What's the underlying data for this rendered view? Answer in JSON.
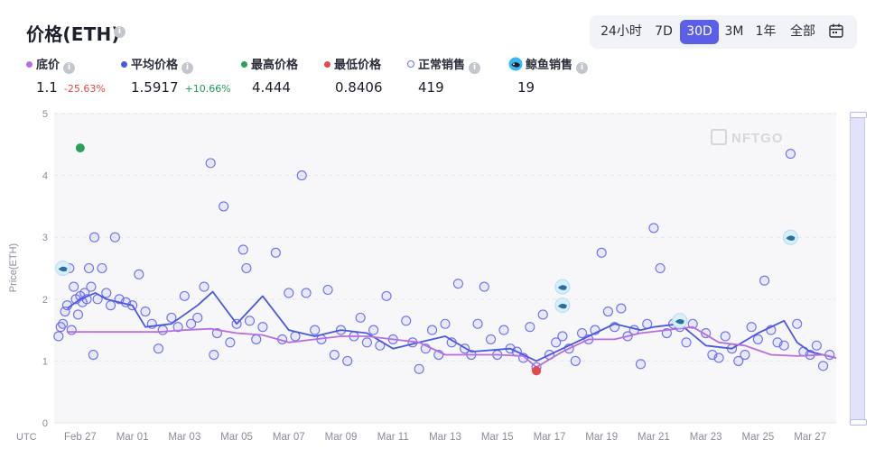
{
  "title": "价格(ETH)",
  "range_buttons": [
    "24小时",
    "7D",
    "30D",
    "3M",
    "1年",
    "全部"
  ],
  "range_active": "30D",
  "stats": {
    "floor": {
      "label": "底价",
      "value": "1.1",
      "change": "-25.63%",
      "color": "#b86de0",
      "change_color": "#e5484d"
    },
    "avg": {
      "label": "平均价格",
      "value": "1.5917",
      "change": "+10.66%",
      "color": "#4b59e0",
      "change_color": "#1f9d55"
    },
    "high": {
      "label": "最高价格",
      "value": "4.444",
      "color": "#2e9e5b"
    },
    "low": {
      "label": "最低价格",
      "value": "0.8406",
      "color": "#e5484d"
    },
    "normal": {
      "label": "正常销售",
      "value": "419"
    },
    "whale": {
      "label": "鲸鱼销售",
      "value": "19"
    }
  },
  "watermark": "NFTGO",
  "chart_data": {
    "type": "scatter",
    "title": "",
    "xlabel": "UTC",
    "ylabel": "Price(ETH)",
    "ylim": [
      0,
      5
    ],
    "y_ticks": [
      "0",
      "1",
      "2",
      "3",
      "4",
      "5"
    ],
    "x_range": [
      "2023-02-26",
      "2023-03-28"
    ],
    "x_ticks": [
      {
        "date": "2023-02-27",
        "label": "Feb 27"
      },
      {
        "date": "2023-03-01",
        "label": "Mar 01"
      },
      {
        "date": "2023-03-03",
        "label": "Mar 03"
      },
      {
        "date": "2023-03-05",
        "label": "Mar 05"
      },
      {
        "date": "2023-03-07",
        "label": "Mar 07"
      },
      {
        "date": "2023-03-09",
        "label": "Mar 09"
      },
      {
        "date": "2023-03-11",
        "label": "Mar 11"
      },
      {
        "date": "2023-03-13",
        "label": "Mar 13"
      },
      {
        "date": "2023-03-15",
        "label": "Mar 15"
      },
      {
        "date": "2023-03-17",
        "label": "Mar 17"
      },
      {
        "date": "2023-03-19",
        "label": "Mar 19"
      },
      {
        "date": "2023-03-21",
        "label": "Mar 21"
      },
      {
        "date": "2023-03-23",
        "label": "Mar 23"
      },
      {
        "date": "2023-03-25",
        "label": "Mar 25"
      },
      {
        "date": "2023-03-27",
        "label": "Mar 27"
      }
    ],
    "series": [
      {
        "name": "平均价格",
        "kind": "line",
        "color": "#4b59e0",
        "points": [
          [
            "2023-02-26 12:00",
            1.85
          ],
          [
            "2023-02-27 00:00",
            2.0
          ],
          [
            "2023-02-27 14:00",
            2.1
          ],
          [
            "2023-02-28 00:00",
            2.0
          ],
          [
            "2023-03-01 00:00",
            1.9
          ],
          [
            "2023-03-01 12:00",
            1.55
          ],
          [
            "2023-03-02 12:00",
            1.6
          ],
          [
            "2023-03-03 12:00",
            1.9
          ],
          [
            "2023-03-04 02:00",
            2.12
          ],
          [
            "2023-03-05 00:00",
            1.6
          ],
          [
            "2023-03-06 00:00",
            2.05
          ],
          [
            "2023-03-07 00:00",
            1.5
          ],
          [
            "2023-03-08 00:00",
            1.4
          ],
          [
            "2023-03-09 00:00",
            1.5
          ],
          [
            "2023-03-10 00:00",
            1.45
          ],
          [
            "2023-03-11 00:00",
            1.2
          ],
          [
            "2023-03-12 00:00",
            1.3
          ],
          [
            "2023-03-13 00:00",
            1.4
          ],
          [
            "2023-03-14 00:00",
            1.15
          ],
          [
            "2023-03-15 12:00",
            1.2
          ],
          [
            "2023-03-16 12:00",
            1.0
          ],
          [
            "2023-03-17 12:00",
            1.2
          ],
          [
            "2023-03-18 12:00",
            1.4
          ],
          [
            "2023-03-19 12:00",
            1.6
          ],
          [
            "2023-03-20 12:00",
            1.5
          ],
          [
            "2023-03-21 00:00",
            1.55
          ],
          [
            "2023-03-22 00:00",
            1.6
          ],
          [
            "2023-03-23 00:00",
            1.25
          ],
          [
            "2023-03-24 00:00",
            1.2
          ],
          [
            "2023-03-25 00:00",
            1.45
          ],
          [
            "2023-03-26 00:00",
            1.65
          ],
          [
            "2023-03-26 12:00",
            1.3
          ],
          [
            "2023-03-27 00:00",
            1.15
          ],
          [
            "2023-03-28 00:00",
            1.05
          ]
        ]
      },
      {
        "name": "底价",
        "kind": "line",
        "color": "#b86de0",
        "points": [
          [
            "2023-02-26 12:00",
            1.47
          ],
          [
            "2023-03-02 00:00",
            1.47
          ],
          [
            "2023-03-03 00:00",
            1.5
          ],
          [
            "2023-03-04 00:00",
            1.52
          ],
          [
            "2023-03-05 00:00",
            1.45
          ],
          [
            "2023-03-06 00:00",
            1.42
          ],
          [
            "2023-03-07 00:00",
            1.3
          ],
          [
            "2023-03-08 00:00",
            1.35
          ],
          [
            "2023-03-09 00:00",
            1.4
          ],
          [
            "2023-03-10 00:00",
            1.4
          ],
          [
            "2023-03-11 00:00",
            1.35
          ],
          [
            "2023-03-12 00:00",
            1.3
          ],
          [
            "2023-03-13 00:00",
            1.1
          ],
          [
            "2023-03-14 00:00",
            1.1
          ],
          [
            "2023-03-15 00:00",
            1.1
          ],
          [
            "2023-03-16 00:00",
            1.08
          ],
          [
            "2023-03-16 12:00",
            0.9
          ],
          [
            "2023-03-17 12:00",
            1.15
          ],
          [
            "2023-03-18 12:00",
            1.35
          ],
          [
            "2023-03-19 12:00",
            1.35
          ],
          [
            "2023-03-20 12:00",
            1.45
          ],
          [
            "2023-03-21 12:00",
            1.5
          ],
          [
            "2023-03-22 12:00",
            1.55
          ],
          [
            "2023-03-23 12:00",
            1.3
          ],
          [
            "2023-03-24 12:00",
            1.25
          ],
          [
            "2023-03-25 12:00",
            1.1
          ],
          [
            "2023-03-26 12:00",
            1.08
          ],
          [
            "2023-03-27 12:00",
            1.1
          ],
          [
            "2023-03-28 00:00",
            1.05
          ]
        ]
      },
      {
        "name": "正常销售",
        "kind": "scatter",
        "color": "#6b6ff0",
        "points": [
          [
            "2023-02-26 04:00",
            1.4
          ],
          [
            "2023-02-26 06:00",
            1.55
          ],
          [
            "2023-02-26 08:00",
            1.6
          ],
          [
            "2023-02-26 10:00",
            1.8
          ],
          [
            "2023-02-26 12:00",
            1.9
          ],
          [
            "2023-02-26 14:00",
            2.5
          ],
          [
            "2023-02-26 16:00",
            1.5
          ],
          [
            "2023-02-26 18:00",
            2.2
          ],
          [
            "2023-02-26 20:00",
            2.0
          ],
          [
            "2023-02-26 22:00",
            1.75
          ],
          [
            "2023-02-27 00:00",
            2.05
          ],
          [
            "2023-02-27 02:00",
            1.95
          ],
          [
            "2023-02-27 04:00",
            2.1
          ],
          [
            "2023-02-27 06:00",
            2.0
          ],
          [
            "2023-02-27 08:00",
            2.5
          ],
          [
            "2023-02-27 10:00",
            2.2
          ],
          [
            "2023-02-27 12:00",
            1.1
          ],
          [
            "2023-02-27 13:00",
            3.0
          ],
          [
            "2023-02-27 16:00",
            2.0
          ],
          [
            "2023-02-27 20:00",
            2.5
          ],
          [
            "2023-02-28 00:00",
            2.1
          ],
          [
            "2023-02-28 04:00",
            1.9
          ],
          [
            "2023-02-28 08:00",
            3.0
          ],
          [
            "2023-02-28 12:00",
            2.0
          ],
          [
            "2023-02-28 18:00",
            1.95
          ],
          [
            "2023-03-01 00:00",
            1.9
          ],
          [
            "2023-03-01 06:00",
            2.4
          ],
          [
            "2023-03-01 12:00",
            1.8
          ],
          [
            "2023-03-01 18:00",
            1.6
          ],
          [
            "2023-03-02 00:00",
            1.2
          ],
          [
            "2023-03-02 04:00",
            1.5
          ],
          [
            "2023-03-02 12:00",
            1.7
          ],
          [
            "2023-03-02 18:00",
            1.55
          ],
          [
            "2023-03-03 00:00",
            2.05
          ],
          [
            "2023-03-03 06:00",
            1.6
          ],
          [
            "2023-03-03 12:00",
            1.7
          ],
          [
            "2023-03-03 18:00",
            2.2
          ],
          [
            "2023-03-04 00:00",
            4.2
          ],
          [
            "2023-03-04 03:00",
            1.1
          ],
          [
            "2023-03-04 06:00",
            1.45
          ],
          [
            "2023-03-04 12:00",
            3.5
          ],
          [
            "2023-03-04 18:00",
            1.3
          ],
          [
            "2023-03-05 00:00",
            1.6
          ],
          [
            "2023-03-05 06:00",
            2.8
          ],
          [
            "2023-03-05 09:00",
            2.5
          ],
          [
            "2023-03-05 12:00",
            1.65
          ],
          [
            "2023-03-05 18:00",
            1.35
          ],
          [
            "2023-03-06 00:00",
            1.55
          ],
          [
            "2023-03-06 12:00",
            2.75
          ],
          [
            "2023-03-06 18:00",
            1.35
          ],
          [
            "2023-03-07 00:00",
            2.1
          ],
          [
            "2023-03-07 06:00",
            1.4
          ],
          [
            "2023-03-07 12:00",
            4.0
          ],
          [
            "2023-03-07 16:00",
            2.1
          ],
          [
            "2023-03-08 00:00",
            1.5
          ],
          [
            "2023-03-08 06:00",
            1.35
          ],
          [
            "2023-03-08 12:00",
            2.15
          ],
          [
            "2023-03-08 18:00",
            1.1
          ],
          [
            "2023-03-09 00:00",
            1.5
          ],
          [
            "2023-03-09 06:00",
            1.0
          ],
          [
            "2023-03-09 12:00",
            1.4
          ],
          [
            "2023-03-09 18:00",
            1.7
          ],
          [
            "2023-03-10 00:00",
            1.3
          ],
          [
            "2023-03-10 06:00",
            1.5
          ],
          [
            "2023-03-10 12:00",
            1.25
          ],
          [
            "2023-03-10 18:00",
            2.05
          ],
          [
            "2023-03-11 00:00",
            1.35
          ],
          [
            "2023-03-11 12:00",
            1.65
          ],
          [
            "2023-03-11 18:00",
            1.3
          ],
          [
            "2023-03-12 00:00",
            0.87
          ],
          [
            "2023-03-12 06:00",
            1.2
          ],
          [
            "2023-03-12 12:00",
            1.5
          ],
          [
            "2023-03-12 18:00",
            1.1
          ],
          [
            "2023-03-13 00:00",
            1.6
          ],
          [
            "2023-03-13 06:00",
            1.3
          ],
          [
            "2023-03-13 12:00",
            2.25
          ],
          [
            "2023-03-13 18:00",
            1.2
          ],
          [
            "2023-03-14 00:00",
            1.1
          ],
          [
            "2023-03-14 06:00",
            1.6
          ],
          [
            "2023-03-14 12:00",
            2.2
          ],
          [
            "2023-03-14 18:00",
            1.35
          ],
          [
            "2023-03-15 00:00",
            1.1
          ],
          [
            "2023-03-15 06:00",
            1.5
          ],
          [
            "2023-03-15 12:00",
            1.2
          ],
          [
            "2023-03-15 18:00",
            1.15
          ],
          [
            "2023-03-16 00:00",
            1.05
          ],
          [
            "2023-03-16 06:00",
            1.55
          ],
          [
            "2023-03-16 12:00",
            0.9
          ],
          [
            "2023-03-16 18:00",
            1.75
          ],
          [
            "2023-03-17 00:00",
            1.1
          ],
          [
            "2023-03-17 06:00",
            1.3
          ],
          [
            "2023-03-17 12:00",
            1.4
          ],
          [
            "2023-03-17 18:00",
            1.2
          ],
          [
            "2023-03-18 00:00",
            1.0
          ],
          [
            "2023-03-18 06:00",
            1.45
          ],
          [
            "2023-03-18 12:00",
            1.35
          ],
          [
            "2023-03-18 18:00",
            1.5
          ],
          [
            "2023-03-19 00:00",
            2.75
          ],
          [
            "2023-03-19 06:00",
            1.8
          ],
          [
            "2023-03-19 12:00",
            1.55
          ],
          [
            "2023-03-19 18:00",
            1.85
          ],
          [
            "2023-03-20 00:00",
            1.4
          ],
          [
            "2023-03-20 06:00",
            1.5
          ],
          [
            "2023-03-20 12:00",
            0.95
          ],
          [
            "2023-03-20 18:00",
            1.6
          ],
          [
            "2023-03-21 00:00",
            3.15
          ],
          [
            "2023-03-21 06:00",
            2.5
          ],
          [
            "2023-03-21 12:00",
            1.45
          ],
          [
            "2023-03-21 18:00",
            1.6
          ],
          [
            "2023-03-22 00:00",
            1.55
          ],
          [
            "2023-03-22 06:00",
            1.3
          ],
          [
            "2023-03-22 12:00",
            1.6
          ],
          [
            "2023-03-23 00:00",
            1.45
          ],
          [
            "2023-03-23 06:00",
            1.1
          ],
          [
            "2023-03-23 12:00",
            1.05
          ],
          [
            "2023-03-23 18:00",
            1.4
          ],
          [
            "2023-03-24 00:00",
            1.2
          ],
          [
            "2023-03-24 06:00",
            1.0
          ],
          [
            "2023-03-24 12:00",
            1.1
          ],
          [
            "2023-03-24 18:00",
            1.55
          ],
          [
            "2023-03-25 00:00",
            1.35
          ],
          [
            "2023-03-25 06:00",
            2.3
          ],
          [
            "2023-03-25 12:00",
            1.5
          ],
          [
            "2023-03-25 18:00",
            1.3
          ],
          [
            "2023-03-26 00:00",
            1.25
          ],
          [
            "2023-03-26 06:00",
            4.35
          ],
          [
            "2023-03-26 12:00",
            1.6
          ],
          [
            "2023-03-26 18:00",
            1.15
          ],
          [
            "2023-03-27 00:00",
            1.1
          ],
          [
            "2023-03-27 06:00",
            1.25
          ],
          [
            "2023-03-27 12:00",
            0.92
          ],
          [
            "2023-03-27 18:00",
            1.1
          ]
        ]
      },
      {
        "name": "鲸鱼销售",
        "kind": "whale",
        "color": "#9fdcf7",
        "points": [
          [
            "2023-02-26 08:00",
            2.5
          ],
          [
            "2023-03-17 12:00",
            2.2
          ],
          [
            "2023-03-17 12:00",
            1.9
          ],
          [
            "2023-03-22 00:00",
            1.65
          ],
          [
            "2023-03-26 06:00",
            3.0
          ]
        ]
      },
      {
        "name": "最高价格",
        "kind": "marker",
        "color": "#2e9e5b",
        "points": [
          [
            "2023-02-27 00:00",
            4.444
          ]
        ]
      },
      {
        "name": "最低价格",
        "kind": "marker",
        "color": "#e5484d",
        "points": [
          [
            "2023-03-16 12:00",
            0.8406
          ]
        ]
      }
    ]
  }
}
